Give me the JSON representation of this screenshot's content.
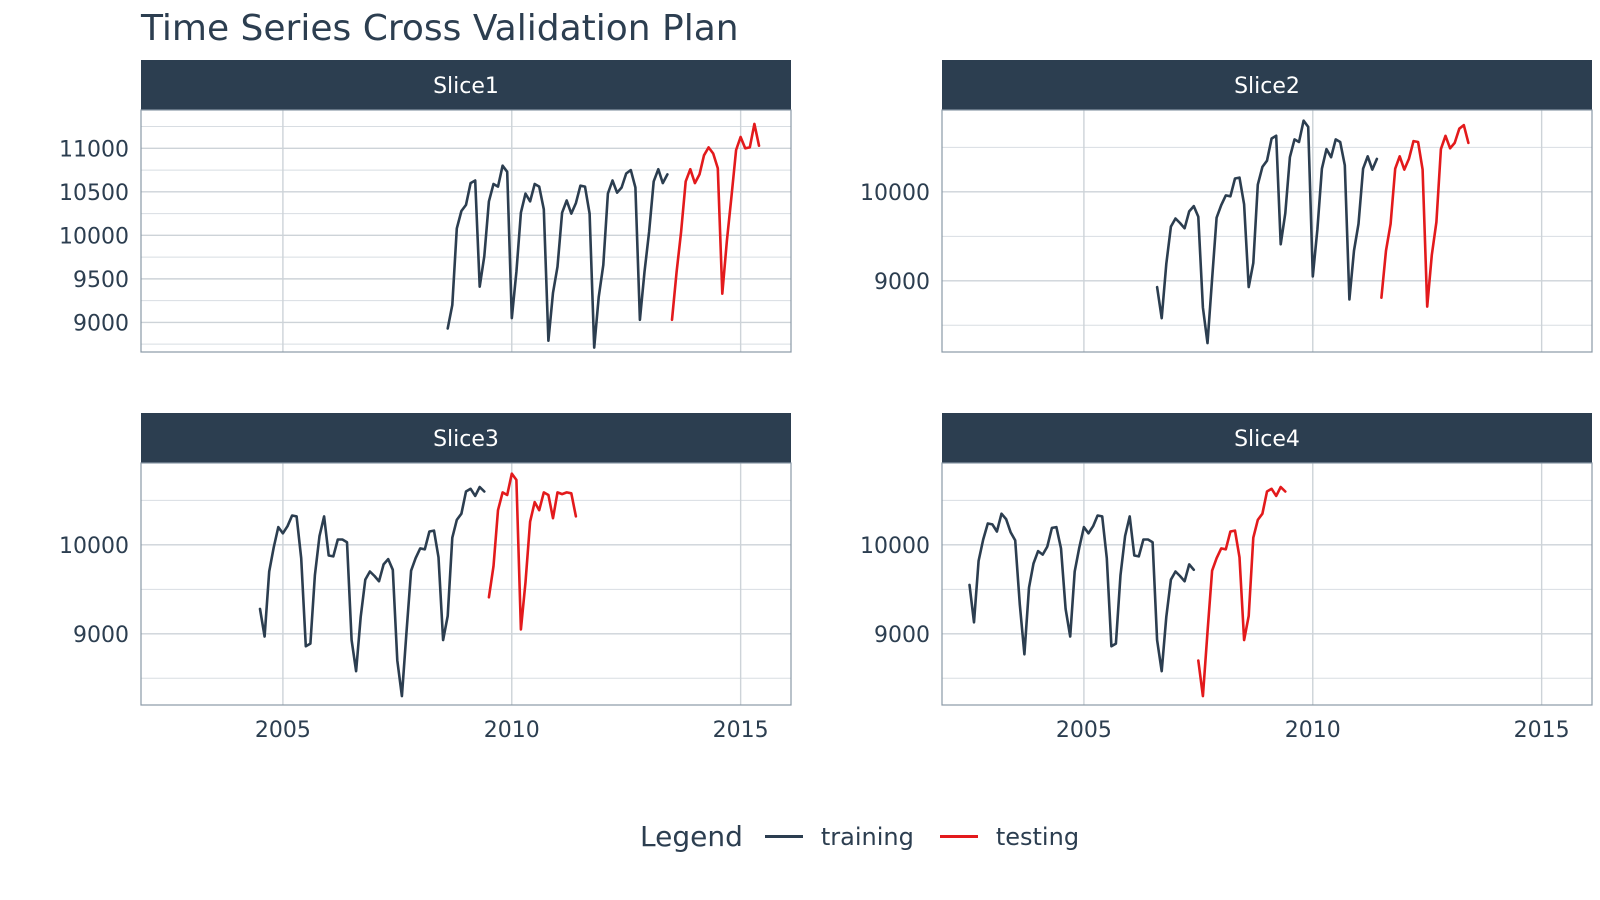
{
  "title": "Time Series Cross Validation Plan",
  "legend": {
    "title": "Legend",
    "items": [
      {
        "label": "training",
        "color": "#2c3e50"
      },
      {
        "label": "testing",
        "color": "#e31a1c"
      }
    ]
  },
  "chart_data": {
    "type": "line",
    "x_axis": {
      "range": [
        2001.9,
        2016.1
      ],
      "ticks": [
        2005,
        2010,
        2015
      ],
      "tick_labels": [
        "2005",
        "2010",
        "2015"
      ]
    },
    "colors": {
      "training": "#2c3e50",
      "testing": "#e31a1c",
      "strip": "#2c3e50"
    },
    "grid": true,
    "legend_position": "bottom",
    "panels": [
      {
        "name": "Slice1",
        "ylim": [
          8660,
          11440
        ],
        "y_ticks": [
          9000,
          9500,
          10000,
          10500,
          11000
        ],
        "y_tick_labels": [
          "9000",
          "9500",
          "10000",
          "10500",
          "11000"
        ],
        "training": {
          "x": [
            2008.6,
            2008.7,
            2008.8,
            2008.9,
            2009.0,
            2009.1,
            2009.2,
            2009.3,
            2009.4,
            2009.5,
            2009.6,
            2009.7,
            2009.8,
            2009.9,
            2010.0,
            2010.1,
            2010.2,
            2010.3,
            2010.4,
            2010.5,
            2010.6,
            2010.7,
            2010.8,
            2010.9,
            2011.0,
            2011.1,
            2011.2,
            2011.3,
            2011.4,
            2011.5,
            2011.6,
            2011.7,
            2011.8,
            2011.9,
            2012.0,
            2012.1,
            2012.2,
            2012.3,
            2012.4,
            2012.5,
            2012.6,
            2012.7,
            2012.8,
            2012.9,
            2013.0,
            2013.1,
            2013.2,
            2013.3,
            2013.4
          ],
          "y": [
            8930,
            9200,
            10080,
            10280,
            10350,
            10600,
            10630,
            9410,
            9760,
            10390,
            10590,
            10560,
            10800,
            10730,
            9050,
            9580,
            10260,
            10480,
            10390,
            10590,
            10560,
            10300,
            8790,
            9340,
            9640,
            10260,
            10400,
            10250,
            10370,
            10570,
            10560,
            10250,
            8710,
            9290,
            9660,
            10480,
            10630,
            10490,
            10550,
            10710,
            10750,
            10550,
            9030,
            9580,
            10040,
            10620,
            10760,
            10600,
            10700
          ]
        },
        "testing": {
          "x": [
            2013.5,
            2013.6,
            2013.7,
            2013.8,
            2013.9,
            2014.0,
            2014.1,
            2014.2,
            2014.3,
            2014.4,
            2014.5,
            2014.6,
            2014.7,
            2014.8,
            2014.9,
            2015.0,
            2015.1,
            2015.2,
            2015.3,
            2015.4
          ],
          "y": [
            9030,
            9580,
            10040,
            10620,
            10760,
            10600,
            10700,
            10920,
            11010,
            10940,
            10770,
            9330,
            9940,
            10450,
            10980,
            11130,
            11000,
            11010,
            11280,
            11030
          ]
        }
      },
      {
        "name": "Slice2",
        "ylim": [
          8200,
          10920
        ],
        "y_ticks": [
          9000,
          10000
        ],
        "y_tick_labels": [
          "9000",
          "10000"
        ],
        "training": {
          "x": [
            2006.6,
            2006.7,
            2006.8,
            2006.9,
            2007.0,
            2007.1,
            2007.2,
            2007.3,
            2007.4,
            2007.5,
            2007.6,
            2007.7,
            2007.8,
            2007.9,
            2008.0,
            2008.1,
            2008.2,
            2008.3,
            2008.4,
            2008.5,
            2008.6,
            2008.7,
            2008.8,
            2008.9,
            2009.0,
            2009.1,
            2009.2,
            2009.3,
            2009.4,
            2009.5,
            2009.6,
            2009.7,
            2009.8,
            2009.9,
            2010.0,
            2010.1,
            2010.2,
            2010.3,
            2010.4,
            2010.5,
            2010.6,
            2010.7,
            2010.8,
            2010.9,
            2011.0,
            2011.1,
            2011.2,
            2011.3,
            2011.4
          ],
          "y": [
            8930,
            8580,
            9190,
            9610,
            9700,
            9650,
            9590,
            9780,
            9840,
            9720,
            8700,
            8300,
            9020,
            9710,
            9850,
            9960,
            9950,
            10150,
            10160,
            9860,
            8930,
            9200,
            10080,
            10280,
            10350,
            10600,
            10630,
            9410,
            9760,
            10390,
            10590,
            10560,
            10800,
            10730,
            9050,
            9580,
            10260,
            10480,
            10390,
            10590,
            10560,
            10300,
            8790,
            9340,
            9640,
            10260,
            10400,
            10250,
            10370
          ]
        },
        "testing": {
          "x": [
            2011.5,
            2011.6,
            2011.7,
            2011.8,
            2011.9,
            2012.0,
            2012.1,
            2012.2,
            2012.3,
            2012.4,
            2012.5,
            2012.6,
            2012.7,
            2012.8,
            2012.9,
            2013.0,
            2013.1,
            2013.2,
            2013.3,
            2013.4
          ],
          "y": [
            8810,
            9340,
            9640,
            10260,
            10400,
            10250,
            10370,
            10570,
            10560,
            10250,
            8710,
            9290,
            9660,
            10480,
            10630,
            10490,
            10550,
            10710,
            10750,
            10550
          ]
        }
      },
      {
        "name": "Slice3",
        "ylim": [
          8200,
          10920
        ],
        "y_ticks": [
          9000,
          10000
        ],
        "y_tick_labels": [
          "9000",
          "10000"
        ],
        "training": {
          "x": [
            2004.5,
            2004.6,
            2004.7,
            2004.8,
            2004.9,
            2005.0,
            2005.1,
            2005.2,
            2005.3,
            2005.4,
            2005.5,
            2005.6,
            2005.7,
            2005.8,
            2005.9,
            2006.0,
            2006.1,
            2006.2,
            2006.3,
            2006.4,
            2006.5,
            2006.6,
            2006.7,
            2006.8,
            2006.9,
            2007.0,
            2007.1,
            2007.2,
            2007.3,
            2007.4,
            2007.5,
            2007.6,
            2007.7,
            2007.8,
            2007.9,
            2008.0,
            2008.1,
            2008.2,
            2008.3,
            2008.4,
            2008.5,
            2008.6,
            2008.7,
            2008.8,
            2008.9,
            2009.0,
            2009.1,
            2009.2,
            2009.3,
            2009.4
          ],
          "y": [
            9280,
            8970,
            9700,
            9970,
            10200,
            10130,
            10210,
            10330,
            10320,
            9850,
            8860,
            8890,
            9660,
            10100,
            10320,
            9880,
            9870,
            10060,
            10060,
            10030,
            8930,
            8580,
            9190,
            9610,
            9700,
            9650,
            9590,
            9780,
            9840,
            9720,
            8700,
            8300,
            9020,
            9710,
            9850,
            9960,
            9950,
            10150,
            10160,
            9860,
            8930,
            9200,
            10080,
            10280,
            10350,
            10600,
            10630,
            10550,
            10650,
            10600
          ]
        },
        "testing": {
          "x": [
            2009.5,
            2009.6,
            2009.7,
            2009.8,
            2009.9,
            2010.0,
            2010.1,
            2010.2,
            2010.3,
            2010.4,
            2010.5,
            2010.6,
            2010.7,
            2010.8,
            2010.9,
            2011.0,
            2011.1,
            2011.2,
            2011.3,
            2011.4
          ],
          "y": [
            9410,
            9760,
            10390,
            10590,
            10560,
            10800,
            10730,
            9050,
            9580,
            10260,
            10480,
            10390,
            10590,
            10560,
            10300,
            10590,
            10570,
            10590,
            10580,
            10320
          ]
        }
      },
      {
        "name": "Slice4",
        "ylim": [
          8200,
          10920
        ],
        "y_ticks": [
          9000,
          10000
        ],
        "y_tick_labels": [
          "9000",
          "10000"
        ],
        "training": {
          "x": [
            2002.5,
            2002.6,
            2002.7,
            2002.8,
            2002.9,
            2003.0,
            2003.1,
            2003.2,
            2003.3,
            2003.4,
            2003.5,
            2003.6,
            2003.7,
            2003.8,
            2003.9,
            2004.0,
            2004.1,
            2004.2,
            2004.3,
            2004.4,
            2004.5,
            2004.6,
            2004.7,
            2004.8,
            2004.9,
            2005.0,
            2005.1,
            2005.2,
            2005.3,
            2005.4,
            2005.5,
            2005.6,
            2005.7,
            2005.8,
            2005.9,
            2006.0,
            2006.1,
            2006.2,
            2006.3,
            2006.4,
            2006.5,
            2006.6,
            2006.7,
            2006.8,
            2006.9,
            2007.0,
            2007.1,
            2007.2,
            2007.3,
            2007.4
          ],
          "y": [
            9550,
            9130,
            9820,
            10060,
            10240,
            10230,
            10150,
            10350,
            10290,
            10140,
            10050,
            9330,
            8770,
            9520,
            9790,
            9930,
            9890,
            9980,
            10190,
            10200,
            9960,
            9280,
            8970,
            9700,
            9970,
            10200,
            10130,
            10210,
            10330,
            10320,
            9850,
            8860,
            8890,
            9660,
            10100,
            10320,
            9880,
            9870,
            10060,
            10060,
            10030,
            8930,
            8580,
            9190,
            9610,
            9700,
            9650,
            9590,
            9780,
            9720
          ]
        },
        "testing": {
          "x": [
            2007.5,
            2007.6,
            2007.7,
            2007.8,
            2007.9,
            2008.0,
            2008.1,
            2008.2,
            2008.3,
            2008.4,
            2008.5,
            2008.6,
            2008.7,
            2008.8,
            2008.9,
            2009.0,
            2009.1,
            2009.2,
            2009.3,
            2009.4
          ],
          "y": [
            8700,
            8300,
            9020,
            9710,
            9850,
            9960,
            9950,
            10150,
            10160,
            9860,
            8930,
            9200,
            10080,
            10280,
            10350,
            10600,
            10630,
            10550,
            10650,
            10600
          ]
        }
      }
    ]
  }
}
